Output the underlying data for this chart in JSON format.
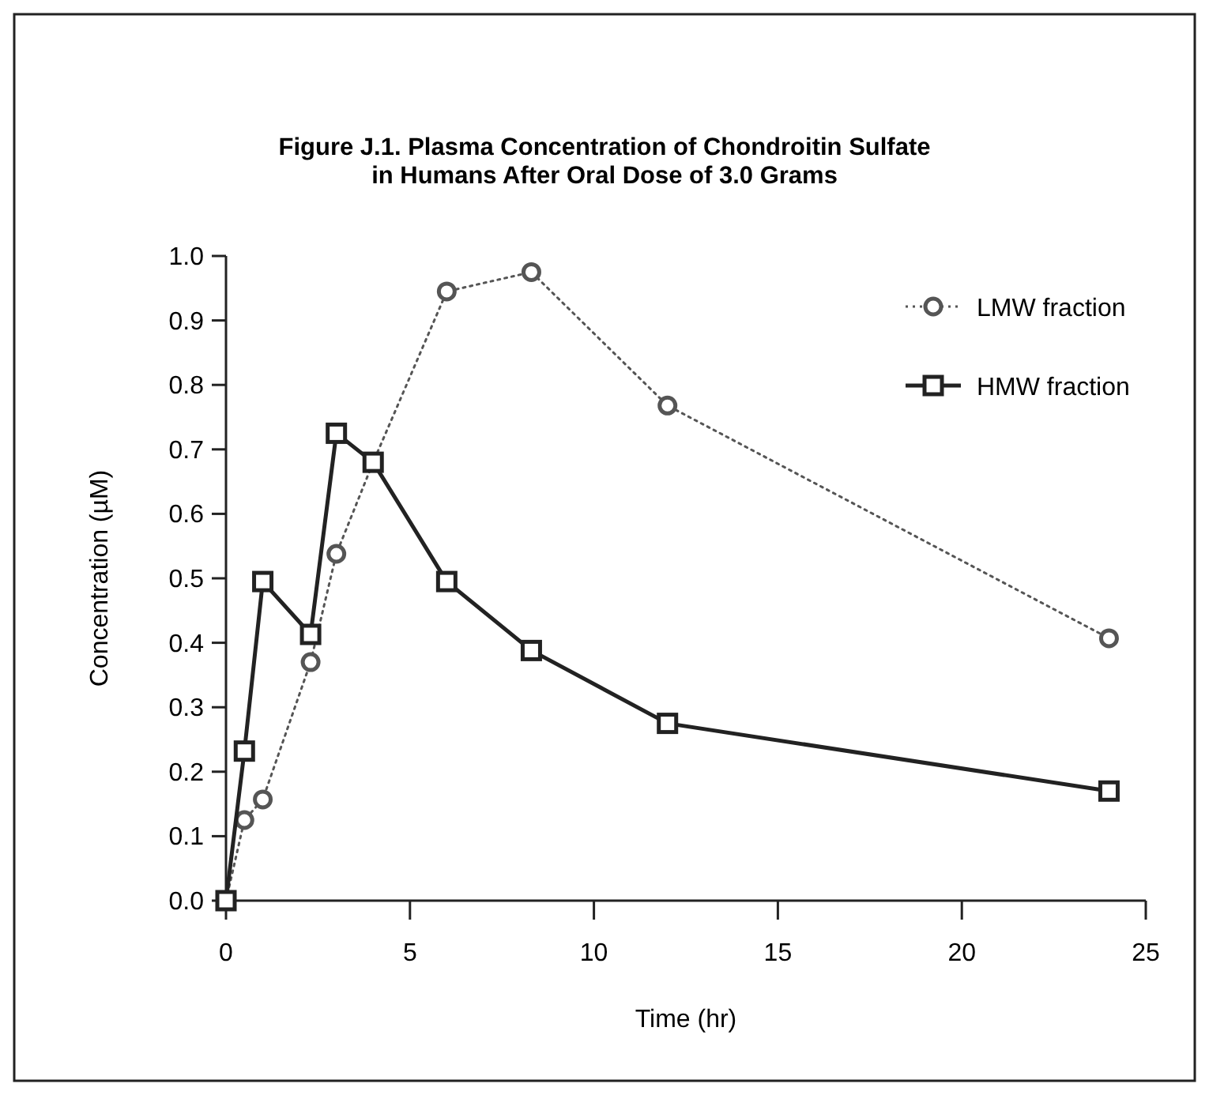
{
  "chart_data": {
    "type": "line",
    "title": "Figure J.1.  Plasma Concentration of Chondroitin Sulfate\nin Humans After Oral Dose of 3.0 Grams",
    "xlabel": "Time (hr)",
    "ylabel": "Concentration (µM)",
    "x": [
      0,
      0.5,
      1,
      2.3,
      3,
      4,
      6,
      8.3,
      12,
      24
    ],
    "series": [
      {
        "name": "LMW fraction",
        "color": "#555555",
        "marker": "circle",
        "line_style": "dotted",
        "values": [
          0,
          0.125,
          0.157,
          0.37,
          0.538,
          0.68,
          0.945,
          0.975,
          0.768,
          0.407
        ]
      },
      {
        "name": "HMW fraction",
        "color": "#222222",
        "marker": "square",
        "line_style": "solid",
        "values": [
          0,
          0.232,
          0.495,
          0.413,
          0.725,
          0.68,
          0.495,
          0.388,
          0.275,
          0.17
        ]
      }
    ],
    "xlim": [
      0,
      25
    ],
    "xticks": [
      0,
      5,
      10,
      15,
      20,
      25
    ],
    "ylim": [
      0,
      1
    ],
    "yticks": [
      {
        "value": 0,
        "label": "0.0"
      },
      {
        "value": 0.1,
        "label": "0.1"
      },
      {
        "value": 0.2,
        "label": "0.2"
      },
      {
        "value": 0.3,
        "label": "0.3"
      },
      {
        "value": 0.4,
        "label": "0.4"
      },
      {
        "value": 0.5,
        "label": "0.5"
      },
      {
        "value": 0.6,
        "label": "0.6"
      },
      {
        "value": 0.7,
        "label": "0.7"
      },
      {
        "value": 0.8,
        "label": "0.8"
      },
      {
        "value": 0.9,
        "label": "0.9"
      },
      {
        "value": 1,
        "label": "1.0"
      }
    ],
    "grid": false,
    "legend": "top right"
  }
}
